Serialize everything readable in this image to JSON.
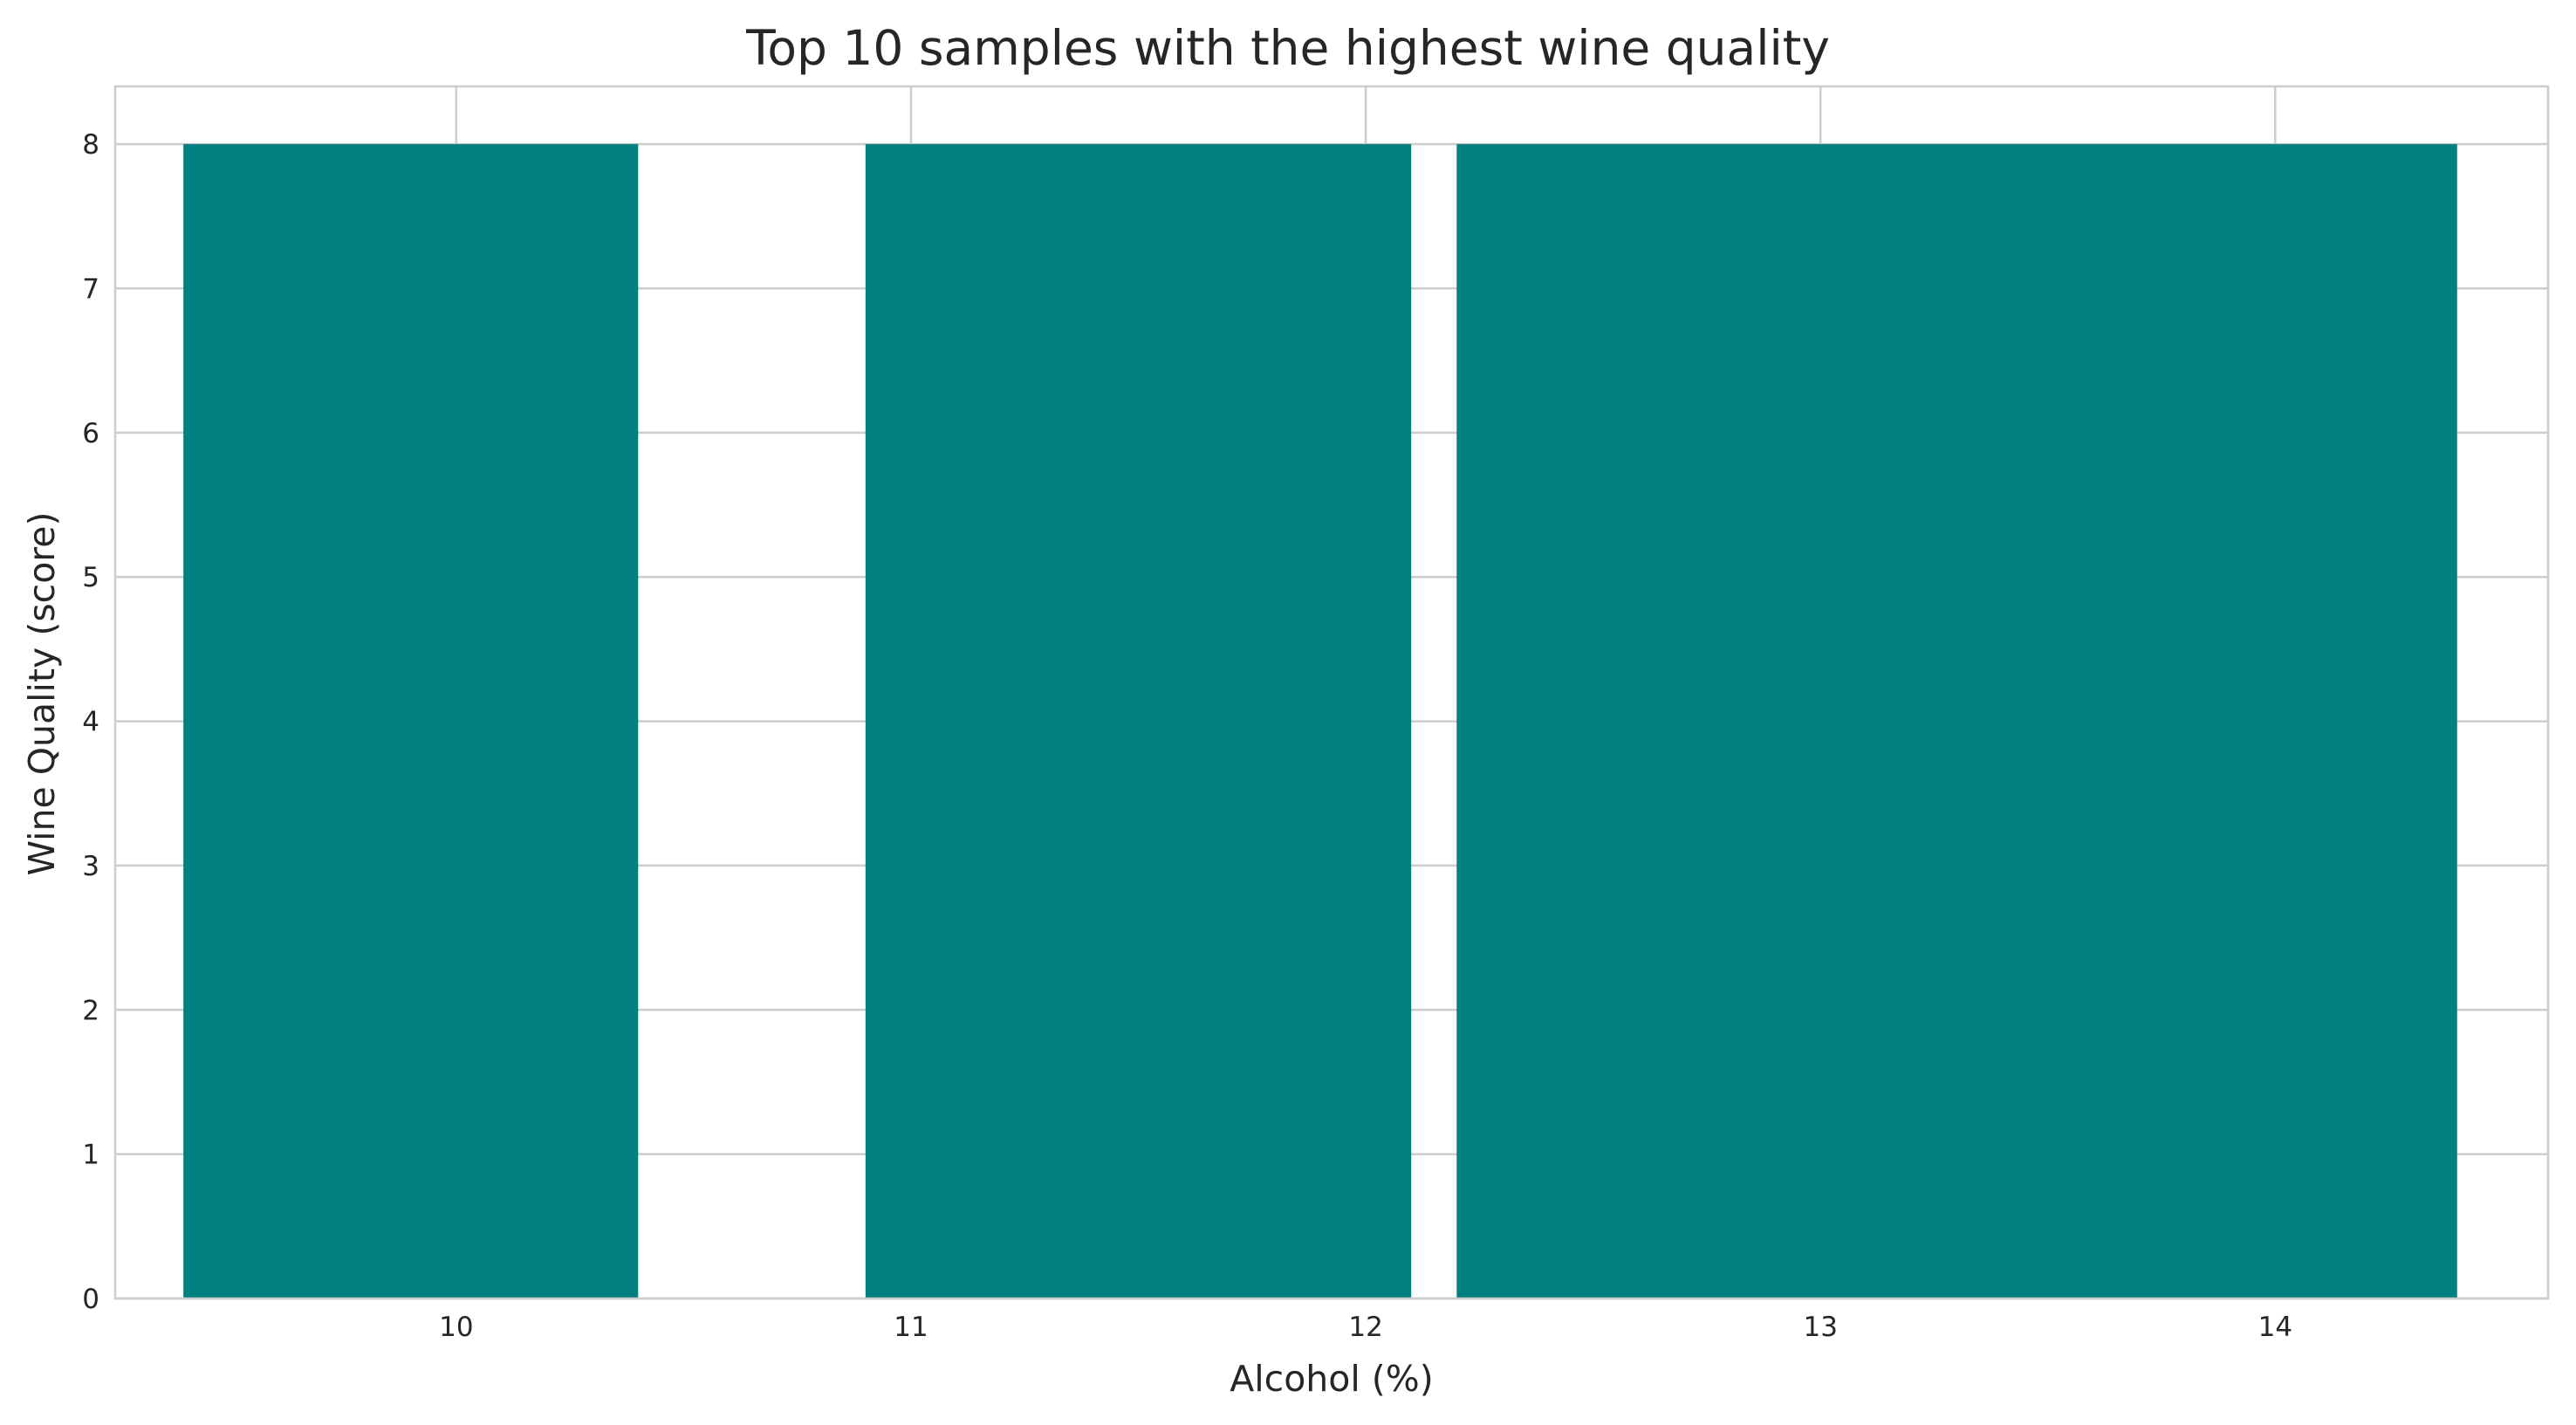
{
  "chart_data": {
    "type": "bar",
    "title": "Top 10 samples with the highest wine quality",
    "xlabel": "Alcohol (%)",
    "ylabel": "Wine Quality (score)",
    "xlim": [
      9.25,
      14.6
    ],
    "ylim": [
      0,
      8.4
    ],
    "x_ticks": [
      "10",
      "11",
      "12",
      "13",
      "14"
    ],
    "y_ticks": [
      "0",
      "1",
      "2",
      "3",
      "4",
      "5",
      "6",
      "7",
      "8"
    ],
    "grid": true,
    "bar_color": "#008080",
    "bars": [
      {
        "x_start": 9.4,
        "x_end": 10.4,
        "value": 8
      },
      {
        "x_start": 10.9,
        "x_end": 12.1,
        "value": 8
      },
      {
        "x_start": 12.2,
        "x_end": 14.4,
        "value": 8
      }
    ]
  }
}
